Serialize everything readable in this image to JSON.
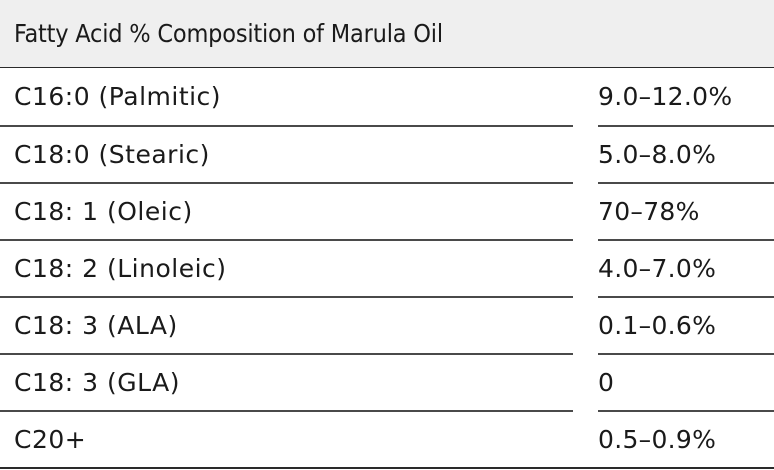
{
  "table": {
    "title": "Fatty Acid % Composition of Marula Oil",
    "rows": [
      {
        "name": "C16:0 (Palmitic)",
        "value": "9.0–12.0%"
      },
      {
        "name": "C18:0 (Stearic)",
        "value": "5.0–8.0%"
      },
      {
        "name": "C18: 1 (Oleic)",
        "value": "70–78%"
      },
      {
        "name": "C18: 2 (Linoleic)",
        "value": "4.0–7.0%"
      },
      {
        "name": "C18: 3 (ALA)",
        "value": "0.1–0.6%"
      },
      {
        "name": "C18: 3 (GLA)",
        "value": "0"
      },
      {
        "name": "C20+",
        "value": "0.5–0.9%"
      }
    ]
  }
}
